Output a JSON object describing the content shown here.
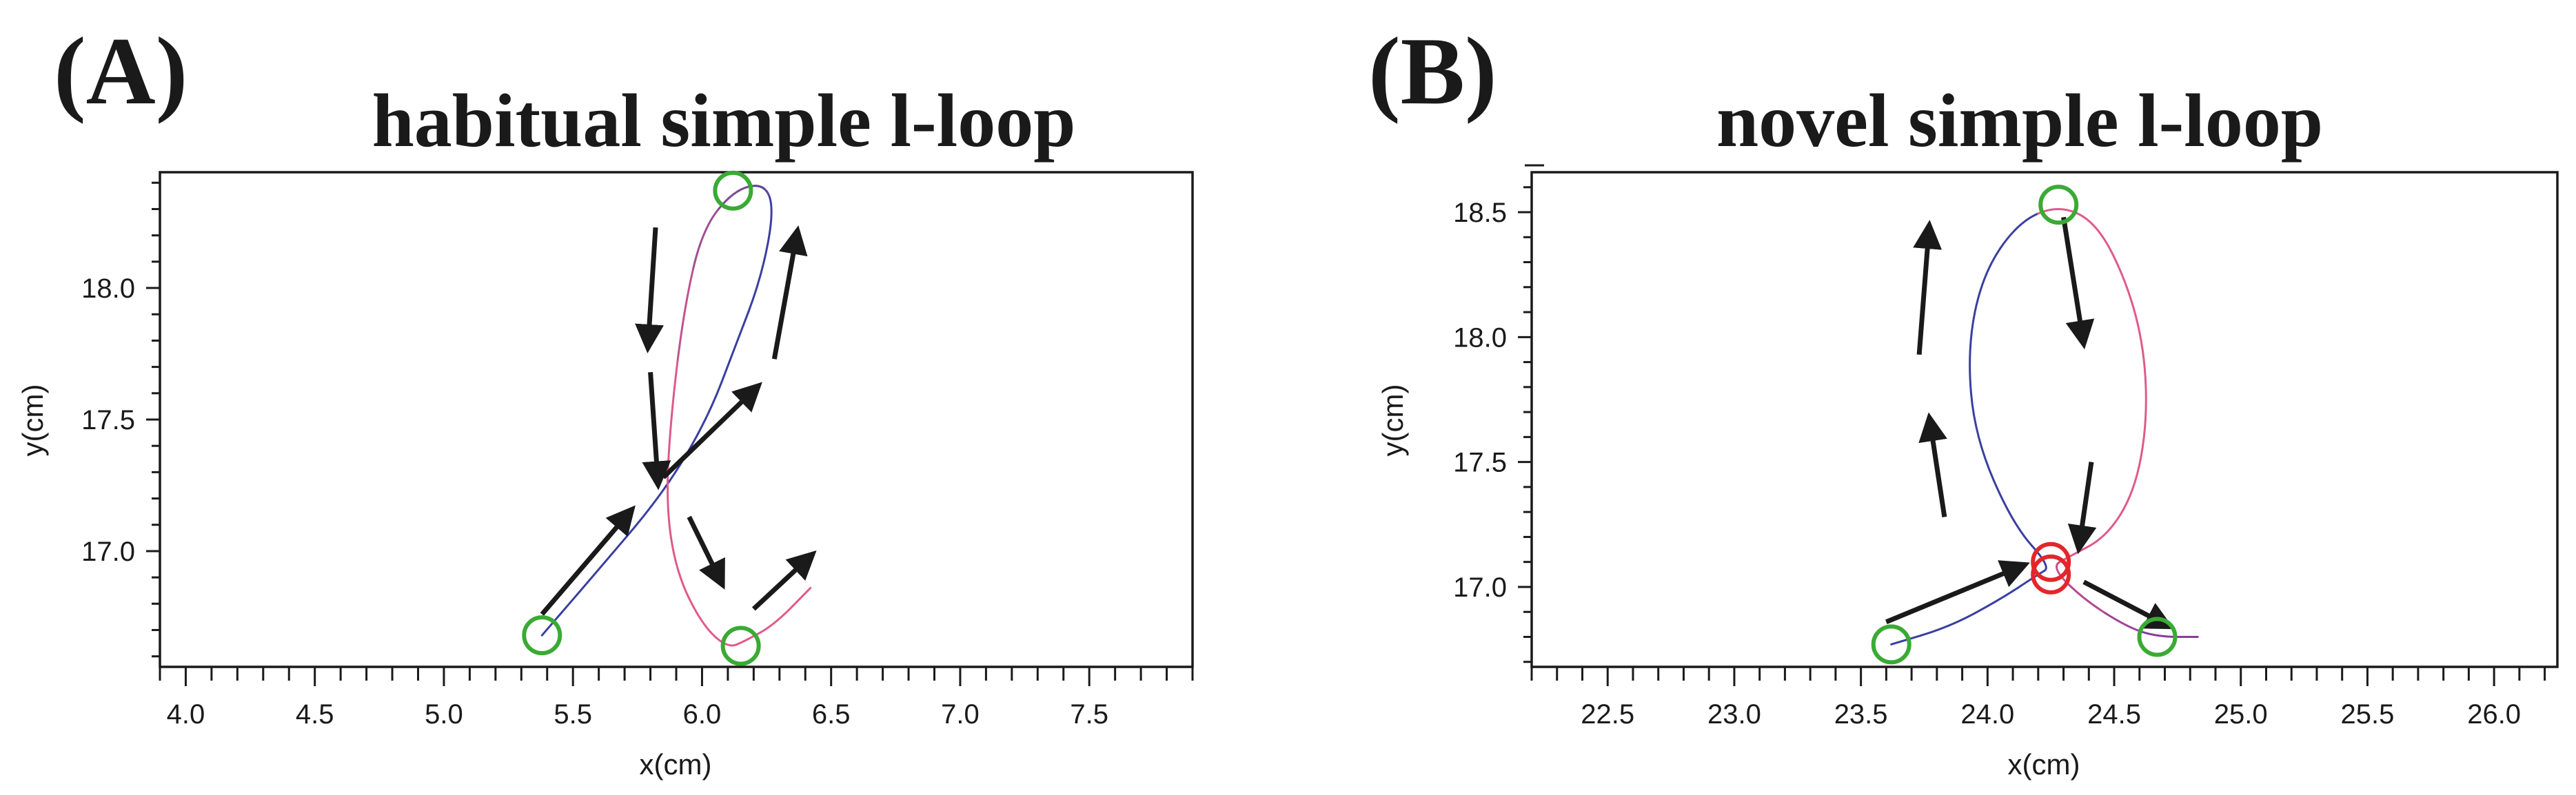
{
  "panels": [
    {
      "letter": "(A)",
      "title": "habitual simple l-loop"
    },
    {
      "letter": "(B)",
      "title": "novel simple l-loop"
    }
  ],
  "colors": {
    "blue_stroke": "#3a3fa0",
    "pink_stroke": "#e05a8a",
    "green_marker": "#3aaa35",
    "red_marker": "#e3262b",
    "arrow": "#1a1a1a"
  },
  "chart_data": [
    {
      "type": "line",
      "panel": "(A)",
      "title": "habitual simple l-loop",
      "xlabel": "x(cm)",
      "ylabel": "y(cm)",
      "xlim": [
        3.9,
        7.9
      ],
      "ylim": [
        16.56,
        18.44
      ],
      "xticks": [
        4.0,
        4.5,
        5.0,
        5.5,
        6.0,
        6.5,
        7.0,
        7.5
      ],
      "xtick_labels": [
        "4.0",
        "4.5",
        "5.0",
        "5.5",
        "6.0",
        "6.5",
        "7.0",
        "7.5"
      ],
      "yticks": [
        17.0,
        17.5,
        18.0
      ],
      "ytick_labels": [
        "17.0",
        "17.5",
        "18.0"
      ],
      "grid": false,
      "trajectory": {
        "x": [
          5.38,
          5.6,
          5.85,
          6.02,
          6.13,
          6.23,
          6.28,
          6.24,
          6.12,
          6.0,
          5.93,
          5.88,
          5.86,
          5.9,
          6.0,
          6.1,
          6.17,
          6.28,
          6.42
        ],
        "y": [
          16.68,
          16.93,
          17.22,
          17.5,
          17.78,
          18.04,
          18.3,
          18.4,
          18.37,
          18.22,
          17.92,
          17.52,
          17.18,
          16.92,
          16.72,
          16.63,
          16.66,
          16.72,
          16.86
        ]
      },
      "key_points": [
        {
          "x": 5.38,
          "y": 16.68
        },
        {
          "x": 6.12,
          "y": 18.37
        },
        {
          "x": 6.15,
          "y": 16.64
        }
      ],
      "direction_arrows": [
        {
          "from": [
            5.38,
            16.76
          ],
          "to": [
            5.73,
            17.16
          ]
        },
        {
          "from": [
            5.85,
            17.28
          ],
          "to": [
            6.22,
            17.63
          ]
        },
        {
          "from": [
            6.28,
            17.73
          ],
          "to": [
            6.37,
            18.22
          ]
        },
        {
          "from": [
            5.82,
            18.23
          ],
          "to": [
            5.79,
            17.77
          ]
        },
        {
          "from": [
            5.8,
            17.68
          ],
          "to": [
            5.83,
            17.25
          ]
        },
        {
          "from": [
            5.95,
            17.13
          ],
          "to": [
            6.08,
            16.87
          ]
        },
        {
          "from": [
            6.2,
            16.78
          ],
          "to": [
            6.43,
            16.99
          ]
        }
      ]
    },
    {
      "type": "line",
      "panel": "(B)",
      "title": "novel simple l-loop",
      "xlabel": "x(cm)",
      "ylabel": "y(cm)",
      "xlim": [
        22.2,
        26.25
      ],
      "ylim": [
        16.68,
        18.66
      ],
      "xticks": [
        22.5,
        23.0,
        23.5,
        24.0,
        24.5,
        25.0,
        25.5,
        26.0
      ],
      "xtick_labels": [
        "22.5",
        "23.0",
        "23.5",
        "24.0",
        "24.5",
        "25.0",
        "25.5",
        "26.0"
      ],
      "yticks": [
        17.0,
        17.5,
        18.0,
        18.5
      ],
      "ytick_labels": [
        "17.0",
        "17.5",
        "18.0",
        "18.5"
      ],
      "grid": false,
      "trajectory": {
        "x": [
          23.62,
          23.85,
          24.05,
          24.2,
          24.25,
          24.1,
          23.95,
          23.92,
          23.98,
          24.12,
          24.28,
          24.43,
          24.55,
          24.62,
          24.63,
          24.58,
          24.47,
          24.32,
          24.25,
          24.38,
          24.55,
          24.67,
          24.83
        ],
        "y": [
          16.77,
          16.84,
          16.95,
          17.05,
          17.08,
          17.25,
          17.6,
          17.95,
          18.25,
          18.46,
          18.53,
          18.46,
          18.22,
          17.95,
          17.65,
          17.38,
          17.2,
          17.12,
          17.08,
          16.95,
          16.84,
          16.8,
          16.8
        ]
      },
      "key_points": [
        {
          "x": 23.62,
          "y": 16.77,
          "color": "green"
        },
        {
          "x": 24.28,
          "y": 18.53,
          "color": "green"
        },
        {
          "x": 24.67,
          "y": 16.8,
          "color": "green"
        },
        {
          "x": 24.25,
          "y": 17.1,
          "color": "red"
        },
        {
          "x": 24.25,
          "y": 17.05,
          "color": "red"
        }
      ],
      "direction_arrows": [
        {
          "from": [
            23.6,
            16.86
          ],
          "to": [
            24.15,
            17.09
          ]
        },
        {
          "from": [
            23.83,
            17.28
          ],
          "to": [
            23.77,
            17.68
          ]
        },
        {
          "from": [
            23.73,
            17.93
          ],
          "to": [
            23.77,
            18.45
          ]
        },
        {
          "from": [
            24.3,
            18.48
          ],
          "to": [
            24.38,
            17.97
          ]
        },
        {
          "from": [
            24.41,
            17.5
          ],
          "to": [
            24.36,
            17.15
          ]
        },
        {
          "from": [
            24.38,
            17.02
          ],
          "to": [
            24.72,
            16.84
          ]
        }
      ]
    }
  ]
}
